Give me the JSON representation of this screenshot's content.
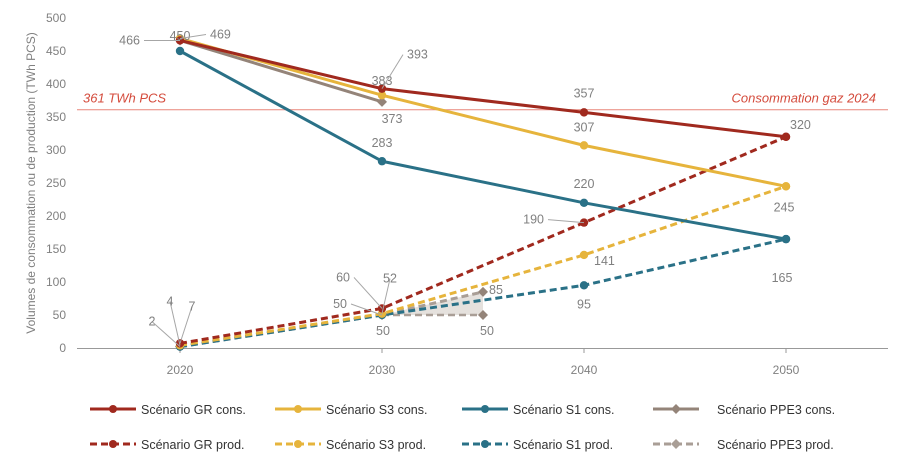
{
  "chart_data": {
    "type": "line",
    "ylabel": "Volumes de consommation ou de production (TWh PCS)",
    "ylim": [
      0,
      500
    ],
    "yticks": [
      0,
      50,
      100,
      150,
      200,
      250,
      300,
      350,
      400,
      450,
      500
    ],
    "x": [
      2020,
      2030,
      2040,
      2050
    ],
    "xtick_labels": [
      "2020",
      "2030",
      "2040",
      "2050"
    ],
    "grid": false,
    "legend_position": "bottom",
    "reference_line": {
      "value": 361,
      "label_left": "361 TWh PCS",
      "label_right": "Consommation gaz 2024",
      "color": "#e8857a"
    },
    "series": [
      {
        "name": "Scénario GR cons.",
        "style": "solid",
        "marker": "circle",
        "color": "#a0291e",
        "points": [
          [
            2020,
            466
          ],
          [
            2030,
            393
          ],
          [
            2040,
            357
          ],
          [
            2050,
            320
          ]
        ]
      },
      {
        "name": "Scénario S3 cons.",
        "style": "solid",
        "marker": "circle",
        "color": "#e6b43c",
        "points": [
          [
            2020,
            469
          ],
          [
            2030,
            383
          ],
          [
            2040,
            307
          ],
          [
            2050,
            245
          ]
        ]
      },
      {
        "name": "Scénario S1 cons.",
        "style": "solid",
        "marker": "circle",
        "color": "#2a7187",
        "points": [
          [
            2020,
            450
          ],
          [
            2030,
            283
          ],
          [
            2040,
            220
          ],
          [
            2050,
            165
          ]
        ]
      },
      {
        "name": "Scénario PPE3 cons.",
        "style": "solid",
        "marker": "diamond",
        "color": "#948479",
        "points": [
          [
            2020,
            466
          ],
          [
            2030,
            373
          ]
        ]
      },
      {
        "name": "Scénario GR prod.",
        "style": "dashed",
        "marker": "circle",
        "color": "#a0291e",
        "points": [
          [
            2020,
            7
          ],
          [
            2030,
            60
          ],
          [
            2040,
            190
          ],
          [
            2050,
            320
          ]
        ]
      },
      {
        "name": "Scénario S3 prod.",
        "style": "dashed",
        "marker": "circle",
        "color": "#e6b43c",
        "points": [
          [
            2020,
            4
          ],
          [
            2030,
            52
          ],
          [
            2040,
            141
          ],
          [
            2050,
            245
          ]
        ]
      },
      {
        "name": "Scénario S1 prod.",
        "style": "dashed",
        "marker": "circle",
        "color": "#2a7187",
        "points": [
          [
            2020,
            2
          ],
          [
            2030,
            50
          ],
          [
            2040,
            95
          ],
          [
            2050,
            165
          ]
        ]
      },
      {
        "name": "Scénario PPE3 prod.",
        "style": "dashed",
        "marker": "diamond",
        "color": "#a99e96",
        "points": [
          [
            2020,
            2
          ],
          [
            2030,
            50
          ],
          [
            2035,
            85
          ]
        ],
        "low_points": [
          [
            2030,
            50
          ],
          [
            2035,
            50
          ]
        ]
      }
    ],
    "annotations": [
      "450",
      "466",
      "469",
      "383",
      "393",
      "373",
      "357",
      "307",
      "283",
      "220",
      "320",
      "245",
      "165",
      "190",
      "141",
      "95",
      "60",
      "52",
      "50",
      "50",
      "85",
      "50",
      "4",
      "7",
      "2"
    ]
  }
}
